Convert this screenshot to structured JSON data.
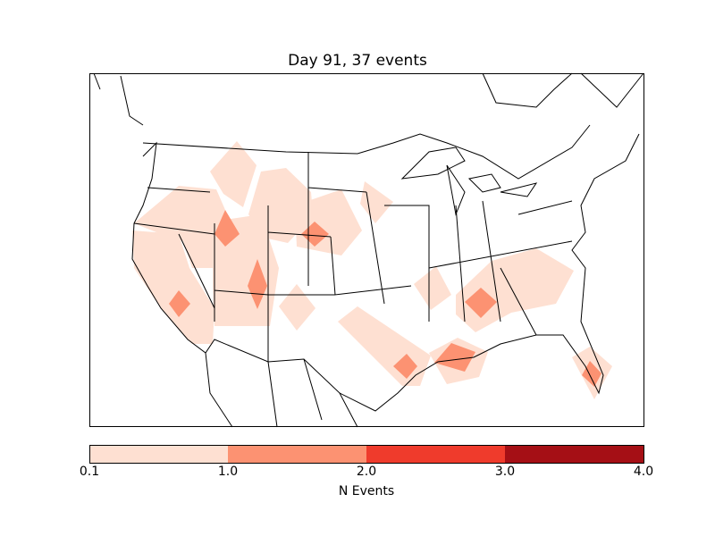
{
  "chart_data": {
    "type": "heatmap",
    "title": "Day 91, 37 events",
    "colorbar": {
      "label": "N Events",
      "ticks": [
        "0.1",
        "1.0",
        "2.0",
        "3.0",
        "4.0"
      ],
      "bounds": [
        0.1,
        1.0,
        2.0,
        3.0,
        4.0
      ],
      "colors": [
        "#fee0d2",
        "#fc9272",
        "#ef3b2c",
        "#a50f15"
      ]
    },
    "max_level_shown": 2.0
  }
}
